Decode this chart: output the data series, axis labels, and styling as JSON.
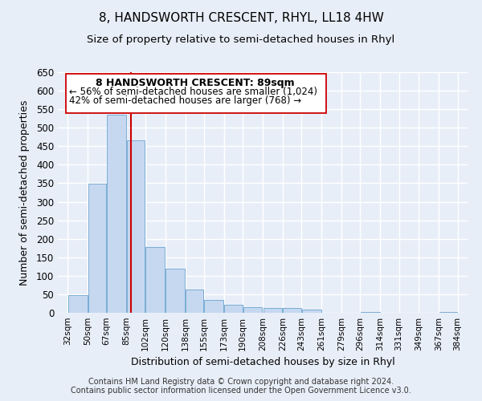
{
  "title": "8, HANDSWORTH CRESCENT, RHYL, LL18 4HW",
  "subtitle": "Size of property relative to semi-detached houses in Rhyl",
  "xlabel": "Distribution of semi-detached houses by size in Rhyl",
  "ylabel": "Number of semi-detached properties",
  "bar_left_edges": [
    32,
    50,
    67,
    85,
    102,
    120,
    138,
    155,
    173,
    190,
    208,
    226,
    243,
    261,
    279,
    296,
    314,
    331,
    349,
    367
  ],
  "bar_widths": [
    18,
    17,
    18,
    17,
    18,
    18,
    17,
    18,
    17,
    18,
    18,
    17,
    18,
    18,
    17,
    18,
    17,
    18,
    18,
    17
  ],
  "bar_heights": [
    47,
    348,
    536,
    465,
    178,
    119,
    62,
    35,
    22,
    15,
    13,
    12,
    8,
    0,
    0,
    2,
    0,
    0,
    0,
    3
  ],
  "bar_color": "#c5d8f0",
  "bar_edge_color": "#7aadd4",
  "tick_labels": [
    "32sqm",
    "50sqm",
    "67sqm",
    "85sqm",
    "102sqm",
    "120sqm",
    "138sqm",
    "155sqm",
    "173sqm",
    "190sqm",
    "208sqm",
    "226sqm",
    "243sqm",
    "261sqm",
    "279sqm",
    "296sqm",
    "314sqm",
    "331sqm",
    "349sqm",
    "367sqm",
    "384sqm"
  ],
  "tick_positions": [
    32,
    50,
    67,
    85,
    102,
    120,
    138,
    155,
    173,
    190,
    208,
    226,
    243,
    261,
    279,
    296,
    314,
    331,
    349,
    367,
    384
  ],
  "vline_x": 89,
  "vline_color": "#cc0000",
  "ylim": [
    0,
    650
  ],
  "xlim": [
    23,
    393
  ],
  "annotation_title": "8 HANDSWORTH CRESCENT: 89sqm",
  "annotation_line1": "← 56% of semi-detached houses are smaller (1,024)",
  "annotation_line2": "42% of semi-detached houses are larger (768) →",
  "footer_line1": "Contains HM Land Registry data © Crown copyright and database right 2024.",
  "footer_line2": "Contains public sector information licensed under the Open Government Licence v3.0.",
  "background_color": "#e8eef8",
  "plot_background": "#e8eef8",
  "grid_color": "#ffffff",
  "title_fontsize": 11,
  "subtitle_fontsize": 9.5,
  "annotation_fontsize": 9,
  "footer_fontsize": 7,
  "yticks": [
    0,
    50,
    100,
    150,
    200,
    250,
    300,
    350,
    400,
    450,
    500,
    550,
    600,
    650
  ]
}
